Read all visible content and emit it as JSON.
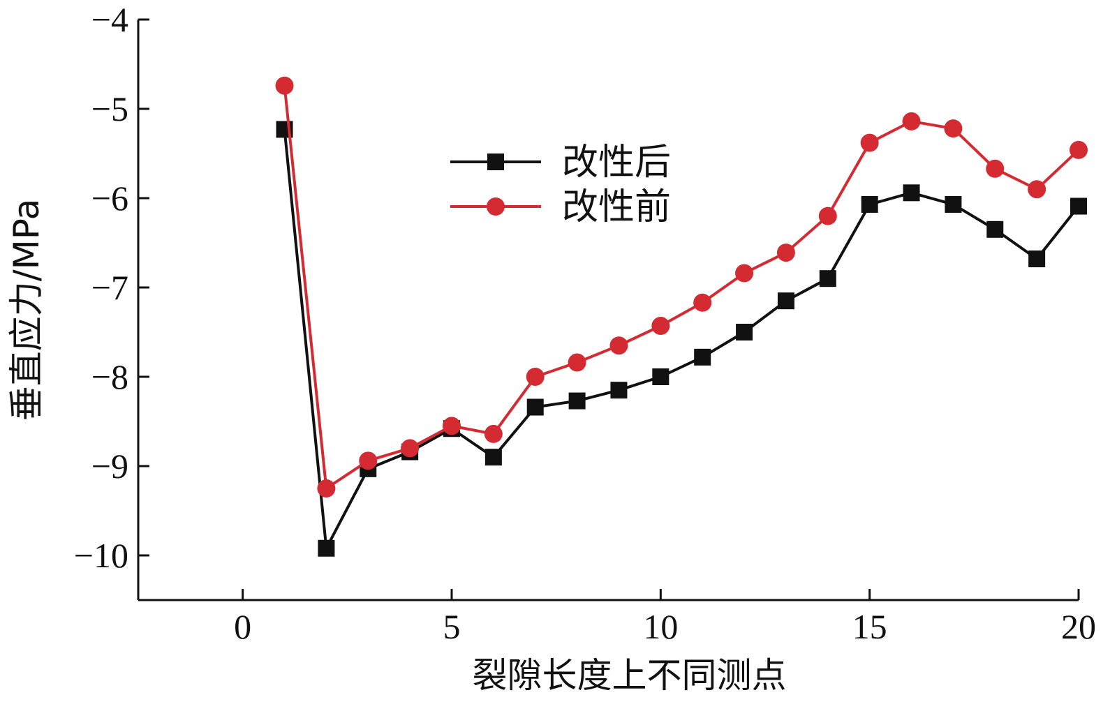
{
  "chart_data": {
    "type": "line",
    "xlabel": "裂隙长度上不同测点",
    "ylabel": "垂直应力/MPa",
    "xlim": [
      -2.5,
      20
    ],
    "ylim": [
      -10.5,
      -4
    ],
    "xticks": [
      0,
      5,
      10,
      15,
      20
    ],
    "yticks": [
      -4,
      -5,
      -6,
      -7,
      -8,
      -9,
      -10
    ],
    "ytick_labels": [
      "−4",
      "−5",
      "−6",
      "−7",
      "−8",
      "−9",
      "−10"
    ],
    "grid": false,
    "legend_position": "top-center",
    "x": [
      1,
      2,
      3,
      4,
      5,
      6,
      7,
      8,
      9,
      10,
      11,
      12,
      13,
      14,
      15,
      16,
      17,
      18,
      19,
      20
    ],
    "series": [
      {
        "name": "改性后",
        "color": "#111111",
        "marker": "square",
        "values": [
          -5.23,
          -9.92,
          -9.03,
          -8.84,
          -8.58,
          -8.9,
          -8.34,
          -8.27,
          -8.15,
          -8.0,
          -7.78,
          -7.5,
          -7.15,
          -6.9,
          -6.07,
          -5.94,
          -6.07,
          -6.35,
          -6.68,
          -6.09
        ]
      },
      {
        "name": "改性前",
        "color": "#d42a32",
        "marker": "circle",
        "values": [
          -4.74,
          -9.25,
          -8.94,
          -8.8,
          -8.55,
          -8.64,
          -8.0,
          -7.84,
          -7.65,
          -7.43,
          -7.17,
          -6.84,
          -6.61,
          -6.2,
          -5.38,
          -5.14,
          -5.22,
          -5.67,
          -5.9,
          -5.46
        ]
      }
    ]
  }
}
